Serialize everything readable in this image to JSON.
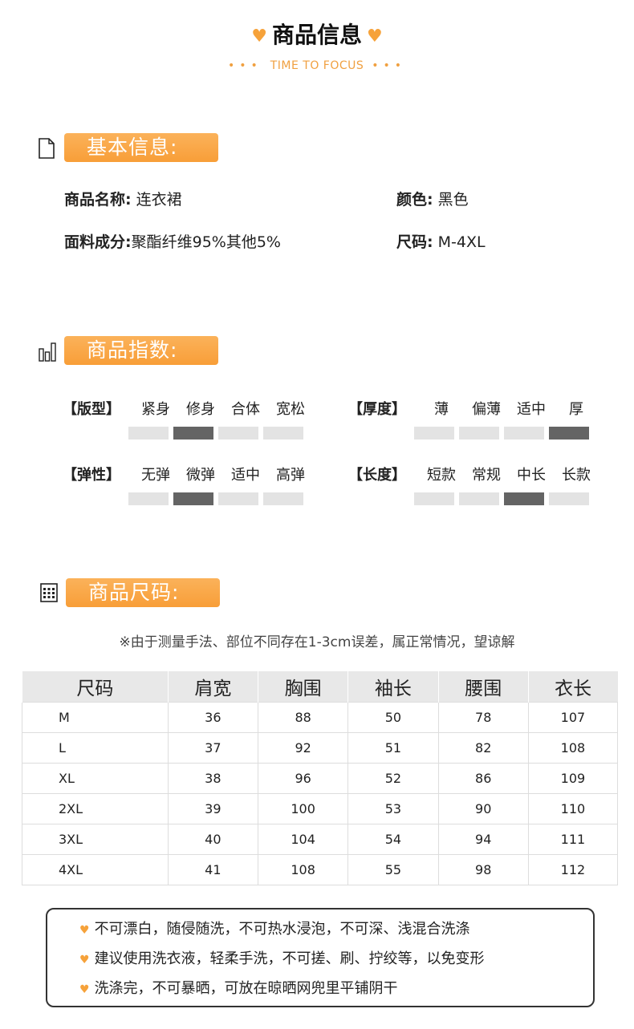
{
  "header": {
    "title": "商品信息",
    "subtitle": "TIME TO FOCUS",
    "accent": "#f6a23a"
  },
  "basic": {
    "heading": "基本信息:",
    "icon": "document-icon",
    "fields": [
      {
        "label": "商品名称:",
        "value": "连衣裙"
      },
      {
        "label": "颜色:",
        "value": "黑色"
      },
      {
        "label": "面料成分:",
        "value": "聚酯纤维95%其他5%"
      },
      {
        "label": "尺码:",
        "value": "M-4XL"
      }
    ]
  },
  "index": {
    "heading": "商品指数:",
    "icon": "bar-chart-icon",
    "groups": [
      {
        "label": "【版型】",
        "options": [
          "紧身",
          "修身",
          "合体",
          "宽松"
        ],
        "selected": 1
      },
      {
        "label": "【厚度】",
        "options": [
          "薄",
          "偏薄",
          "适中",
          "厚"
        ],
        "selected": 3
      },
      {
        "label": "【弹性】",
        "options": [
          "无弹",
          "微弹",
          "适中",
          "高弹"
        ],
        "selected": 1
      },
      {
        "label": "【长度】",
        "options": [
          "短款",
          "常规",
          "中长",
          "长款"
        ],
        "selected": 2
      }
    ]
  },
  "size": {
    "heading": "商品尺码:",
    "icon": "grid-icon",
    "note": "※由于测量手法、部位不同存在1-3cm误差，属正常情况，望谅解",
    "columns": [
      "尺码",
      "肩宽",
      "胸围",
      "袖长",
      "腰围",
      "衣长"
    ],
    "rows": [
      [
        "M",
        "36",
        "88",
        "50",
        "78",
        "107"
      ],
      [
        "L",
        "37",
        "92",
        "51",
        "82",
        "108"
      ],
      [
        "XL",
        "38",
        "96",
        "52",
        "86",
        "109"
      ],
      [
        "2XL",
        "39",
        "100",
        "53",
        "90",
        "110"
      ],
      [
        "3XL",
        "40",
        "104",
        "54",
        "94",
        "111"
      ],
      [
        "4XL",
        "41",
        "108",
        "55",
        "98",
        "112"
      ]
    ]
  },
  "care": [
    "不可漂白，随侵随洗，不可热水浸泡，不可深、浅混合洗涤",
    "建议使用洗衣液，轻柔手洗，不可搓、刷、拧绞等，以免变形",
    "洗涤完，不可暴晒，可放在晾晒网兜里平铺阴干"
  ]
}
